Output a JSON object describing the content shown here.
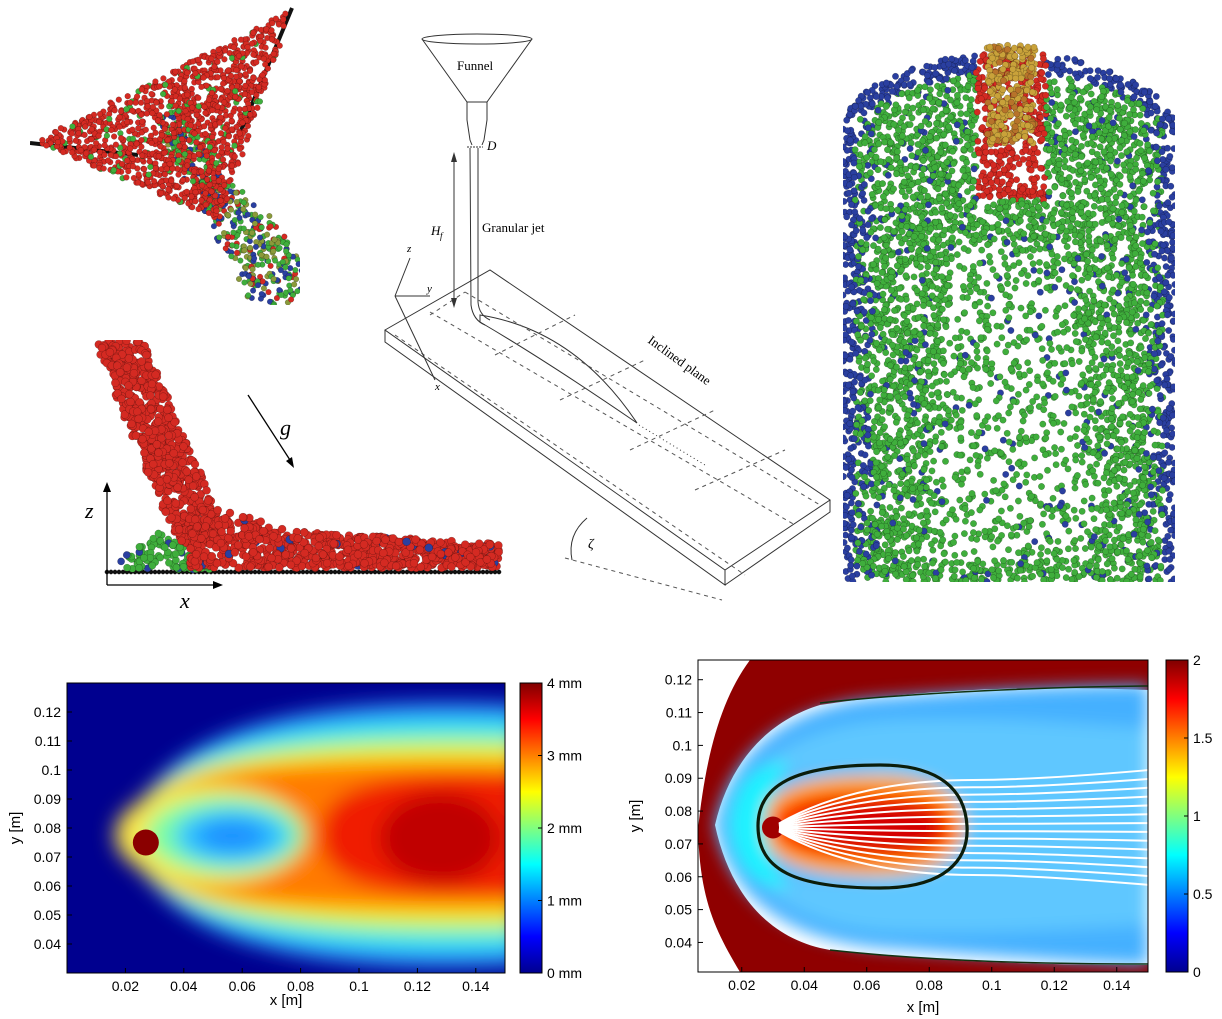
{
  "figure": {
    "panel_a": {
      "description_labels": {
        "z_axis": "z",
        "x_axis": "x",
        "gravity": "g"
      }
    },
    "panel_b": {
      "labels": {
        "funnel": "Funnel",
        "d": "D",
        "hf": "H",
        "hf_sub": "f",
        "jet": "Granular jet",
        "plane": "Inclined  plane",
        "angle": "ζ",
        "ax_x": "x",
        "ax_y": "y",
        "ax_z": "z"
      }
    },
    "colors": {
      "red": "#d42a22",
      "green": "#3fae3c",
      "blue": "#2a3fa0",
      "gold": "#c9a23a"
    }
  },
  "chart_data": [
    {
      "type": "heatmap",
      "title": "",
      "xlabel": "x [m]",
      "ylabel": "y [m]",
      "xlim": [
        0.0,
        0.15
      ],
      "ylim": [
        0.03,
        0.13
      ],
      "xticks": [
        "0.02",
        "0.04",
        "0.06",
        "0.08",
        "0.1",
        "0.12",
        "0.14"
      ],
      "xtick_values": [
        0.02,
        0.04,
        0.06,
        0.08,
        0.1,
        0.12,
        0.14
      ],
      "yticks": [
        "0.04",
        "0.05",
        "0.06",
        "0.07",
        "0.08",
        "0.09",
        "0.1",
        "0.11",
        "0.12"
      ],
      "ytick_values": [
        0.04,
        0.05,
        0.06,
        0.07,
        0.08,
        0.09,
        0.1,
        0.11,
        0.12
      ],
      "colorbar": {
        "ticks": [
          "0 mm",
          "1 mm",
          "2 mm",
          "3 mm",
          "4 mm"
        ],
        "values": [
          0,
          1,
          2,
          3,
          4
        ],
        "range": [
          0,
          4
        ]
      },
      "jet_center": [
        0.027,
        0.075
      ]
    },
    {
      "type": "heatmap",
      "title": "",
      "xlabel": "x [m]",
      "ylabel": "y [m]",
      "xlim": [
        0.006,
        0.15
      ],
      "ylim": [
        0.031,
        0.126
      ],
      "xticks": [
        "0.02",
        "0.04",
        "0.06",
        "0.08",
        "0.1",
        "0.12",
        "0.14"
      ],
      "xtick_values": [
        0.02,
        0.04,
        0.06,
        0.08,
        0.1,
        0.12,
        0.14
      ],
      "yticks": [
        "0.04",
        "0.05",
        "0.06",
        "0.07",
        "0.08",
        "0.09",
        "0.1",
        "0.11",
        "0.12"
      ],
      "ytick_values": [
        0.04,
        0.05,
        0.06,
        0.07,
        0.08,
        0.09,
        0.1,
        0.11,
        0.12
      ],
      "colorbar": {
        "ticks": [
          "0",
          "0.5",
          "1",
          "1.5",
          "2"
        ],
        "values": [
          0,
          0.5,
          1,
          1.5,
          2
        ],
        "range": [
          0,
          2
        ]
      },
      "jet_center": [
        0.03,
        0.075
      ]
    }
  ]
}
